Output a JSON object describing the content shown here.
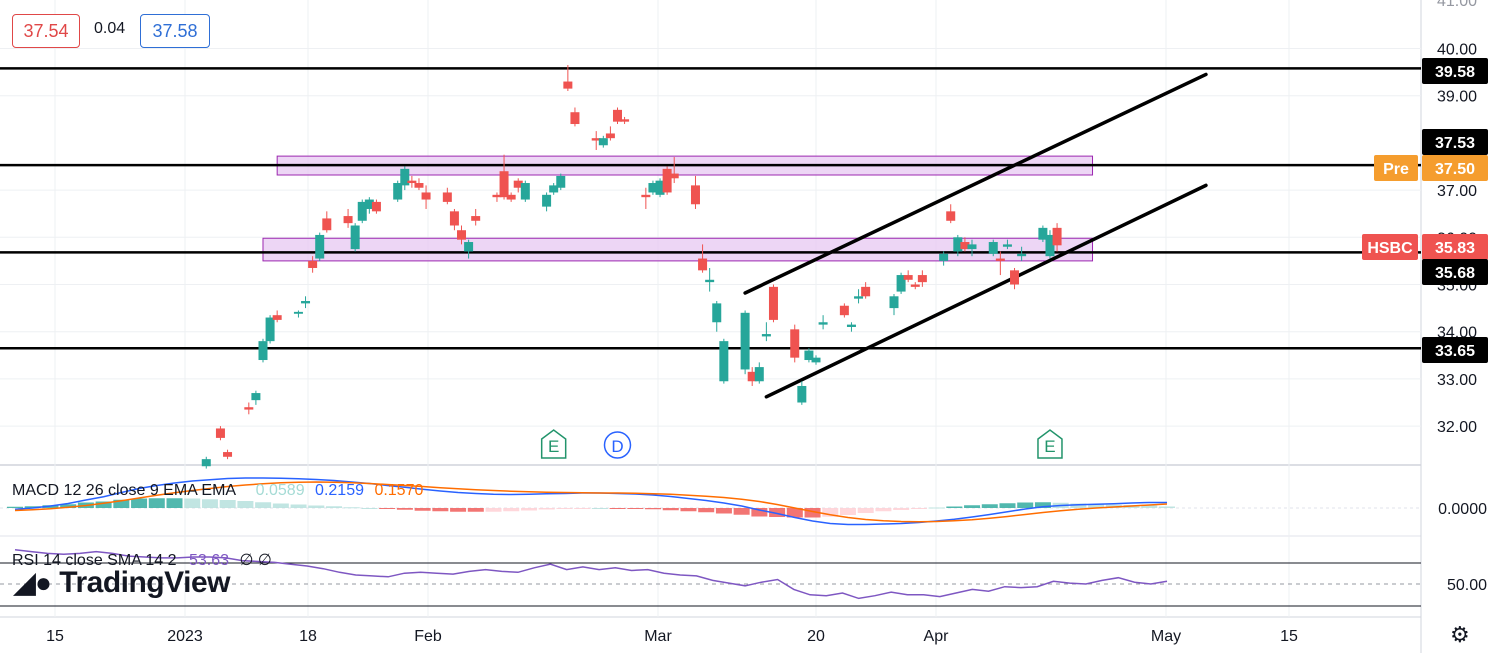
{
  "header": {
    "bid": "37.54",
    "spread": "0.04",
    "ask": "37.58"
  },
  "logo": {
    "text": "TradingView"
  },
  "icons": {
    "settings": "gear-icon"
  },
  "colors": {
    "up": "#26a69a",
    "down": "#ef5350",
    "zone_fill": "#e7c8f2",
    "zone_border": "#9c27b0",
    "macd_line": "#2962ff",
    "signal_line": "#ff6d00",
    "rsi_line": "#7e57c2",
    "pre_tag": "#f59d2e",
    "event_earnings": "#22946b",
    "event_dividend": "#2962ff"
  },
  "chart_data": {
    "type": "candlestick",
    "symbol": "HSBC",
    "price_axis": {
      "ticks": [
        "40.00",
        "39.00",
        "37.00",
        "36.00",
        "35.00",
        "34.00",
        "33.00",
        "32.00"
      ],
      "range": [
        31.3,
        41.1
      ]
    },
    "time_axis": [
      "15",
      "2023",
      "18",
      "Feb",
      "Mar",
      "20",
      "Apr",
      "May",
      "15"
    ],
    "price_tags": [
      {
        "value": "39.58",
        "style": "black"
      },
      {
        "value": "37.53",
        "style": "black"
      },
      {
        "value": "37.50",
        "label": "Pre",
        "style": "pre"
      },
      {
        "value": "35.83",
        "label": "HSBC",
        "style": "red"
      },
      {
        "value": "35.68",
        "style": "black"
      },
      {
        "value": "33.65",
        "style": "black"
      }
    ],
    "horizontal_levels": [
      39.58,
      37.53,
      35.68,
      33.65
    ],
    "zones": [
      {
        "from": "Jan 13",
        "to": "May 8",
        "low": 37.32,
        "high": 37.72
      },
      {
        "from": "Jan 11",
        "to": "May 8",
        "low": 35.5,
        "high": 35.98
      }
    ],
    "channel": {
      "upper": {
        "from": [
          "Mar 20",
          34.82
        ],
        "to": [
          "May 24",
          39.45
        ]
      },
      "lower": {
        "from": [
          "Mar 23",
          32.62
        ],
        "to": [
          "May 24",
          37.1
        ]
      }
    },
    "events": [
      {
        "label": "E",
        "date": "Feb 21",
        "kind": "earnings"
      },
      {
        "label": "D",
        "date": "Mar 2",
        "kind": "dividend"
      },
      {
        "label": "E",
        "date": "May 2",
        "kind": "earnings"
      }
    ],
    "candles": [
      {
        "date": "Jan 3",
        "o": 31.15,
        "h": 31.35,
        "l": 31.1,
        "c": 31.3
      },
      {
        "date": "Jan 5",
        "o": 31.95,
        "h": 32.0,
        "l": 31.7,
        "c": 31.75
      },
      {
        "date": "Jan 6",
        "o": 31.45,
        "h": 31.5,
        "l": 31.3,
        "c": 31.35
      },
      {
        "date": "Jan 9",
        "o": 32.4,
        "h": 32.5,
        "l": 32.25,
        "c": 32.35
      },
      {
        "date": "Jan 10",
        "o": 32.55,
        "h": 32.75,
        "l": 32.45,
        "c": 32.7
      },
      {
        "date": "Jan 11",
        "o": 33.4,
        "h": 33.85,
        "l": 33.35,
        "c": 33.8
      },
      {
        "date": "Jan 12",
        "o": 33.8,
        "h": 34.35,
        "l": 33.75,
        "c": 34.3
      },
      {
        "date": "Jan 13",
        "o": 34.35,
        "h": 34.45,
        "l": 34.2,
        "c": 34.25
      },
      {
        "date": "Jan 16",
        "o": 34.38,
        "h": 34.45,
        "l": 34.3,
        "c": 34.42
      },
      {
        "date": "Jan 17",
        "o": 34.6,
        "h": 34.75,
        "l": 34.5,
        "c": 34.65
      },
      {
        "date": "Jan 18",
        "o": 35.5,
        "h": 35.6,
        "l": 35.25,
        "c": 35.35
      },
      {
        "date": "Jan 19",
        "o": 35.55,
        "h": 36.1,
        "l": 35.5,
        "c": 36.05
      },
      {
        "date": "Jan 20",
        "o": 36.4,
        "h": 36.55,
        "l": 36.1,
        "c": 36.15
      },
      {
        "date": "Jan 23",
        "o": 36.45,
        "h": 36.6,
        "l": 36.2,
        "c": 36.3
      },
      {
        "date": "Jan 24",
        "o": 35.75,
        "h": 36.3,
        "l": 35.7,
        "c": 36.25
      },
      {
        "date": "Jan 25",
        "o": 36.35,
        "h": 36.8,
        "l": 36.3,
        "c": 36.75
      },
      {
        "date": "Jan 26",
        "o": 36.6,
        "h": 36.85,
        "l": 36.5,
        "c": 36.8
      },
      {
        "date": "Jan 27",
        "o": 36.75,
        "h": 36.8,
        "l": 36.5,
        "c": 36.55
      },
      {
        "date": "Jan 30",
        "o": 36.8,
        "h": 37.2,
        "l": 36.75,
        "c": 37.15
      },
      {
        "date": "Jan 31",
        "o": 37.1,
        "h": 37.5,
        "l": 37.0,
        "c": 37.45
      },
      {
        "date": "Feb 1",
        "o": 37.2,
        "h": 37.3,
        "l": 37.05,
        "c": 37.15
      },
      {
        "date": "Feb 2",
        "o": 37.15,
        "h": 37.25,
        "l": 37.0,
        "c": 37.05
      },
      {
        "date": "Feb 3",
        "o": 36.95,
        "h": 37.1,
        "l": 36.6,
        "c": 36.8
      },
      {
        "date": "Feb 6",
        "o": 36.95,
        "h": 37.05,
        "l": 36.7,
        "c": 36.75
      },
      {
        "date": "Feb 7",
        "o": 36.55,
        "h": 36.6,
        "l": 36.15,
        "c": 36.25
      },
      {
        "date": "Feb 8",
        "o": 36.15,
        "h": 36.25,
        "l": 35.85,
        "c": 35.95
      },
      {
        "date": "Feb 9",
        "o": 35.7,
        "h": 35.95,
        "l": 35.55,
        "c": 35.9
      },
      {
        "date": "Feb 10",
        "o": 36.45,
        "h": 36.6,
        "l": 36.25,
        "c": 36.35
      },
      {
        "date": "Feb 13",
        "o": 36.9,
        "h": 36.95,
        "l": 36.75,
        "c": 36.85
      },
      {
        "date": "Feb 14",
        "o": 37.4,
        "h": 37.75,
        "l": 36.8,
        "c": 36.85
      },
      {
        "date": "Feb 15",
        "o": 36.9,
        "h": 36.95,
        "l": 36.75,
        "c": 36.8
      },
      {
        "date": "Feb 16",
        "o": 37.2,
        "h": 37.25,
        "l": 36.95,
        "c": 37.05
      },
      {
        "date": "Feb 17",
        "o": 36.8,
        "h": 37.2,
        "l": 36.75,
        "c": 37.15
      },
      {
        "date": "Feb 20",
        "o": 36.65,
        "h": 36.95,
        "l": 36.55,
        "c": 36.9
      },
      {
        "date": "Feb 21",
        "o": 36.95,
        "h": 37.15,
        "l": 36.9,
        "c": 37.1
      },
      {
        "date": "Feb 22",
        "o": 37.05,
        "h": 37.35,
        "l": 37.0,
        "c": 37.3
      },
      {
        "date": "Feb 23",
        "o": 39.3,
        "h": 39.65,
        "l": 39.1,
        "c": 39.15
      },
      {
        "date": "Feb 24",
        "o": 38.65,
        "h": 38.75,
        "l": 38.35,
        "c": 38.4
      },
      {
        "date": "Feb 27",
        "o": 38.1,
        "h": 38.25,
        "l": 37.85,
        "c": 38.05
      },
      {
        "date": "Feb 28",
        "o": 37.95,
        "h": 38.15,
        "l": 37.9,
        "c": 38.1
      },
      {
        "date": "Mar 1",
        "o": 38.2,
        "h": 38.35,
        "l": 38.05,
        "c": 38.1
      },
      {
        "date": "Mar 2",
        "o": 38.7,
        "h": 38.75,
        "l": 38.4,
        "c": 38.45
      },
      {
        "date": "Mar 3",
        "o": 38.5,
        "h": 38.55,
        "l": 38.4,
        "c": 38.45
      },
      {
        "date": "Mar 6",
        "o": 36.9,
        "h": 37.05,
        "l": 36.6,
        "c": 36.85
      },
      {
        "date": "Mar 7",
        "o": 36.95,
        "h": 37.2,
        "l": 36.9,
        "c": 37.15
      },
      {
        "date": "Mar 8",
        "o": 36.9,
        "h": 37.25,
        "l": 36.85,
        "c": 37.2
      },
      {
        "date": "Mar 9",
        "o": 37.45,
        "h": 37.5,
        "l": 36.9,
        "c": 36.95
      },
      {
        "date": "Mar 10",
        "o": 37.35,
        "h": 37.7,
        "l": 37.15,
        "c": 37.25
      },
      {
        "date": "Mar 13",
        "o": 37.1,
        "h": 37.3,
        "l": 36.6,
        "c": 36.7
      },
      {
        "date": "Mar 14",
        "o": 35.55,
        "h": 35.85,
        "l": 35.25,
        "c": 35.3
      },
      {
        "date": "Mar 15",
        "o": 35.05,
        "h": 35.35,
        "l": 34.85,
        "c": 35.1
      },
      {
        "date": "Mar 16",
        "o": 34.2,
        "h": 34.65,
        "l": 34.0,
        "c": 34.6
      },
      {
        "date": "Mar 17",
        "o": 32.95,
        "h": 33.85,
        "l": 32.9,
        "c": 33.8
      },
      {
        "date": "Mar 20",
        "o": 33.2,
        "h": 34.45,
        "l": 33.1,
        "c": 34.4
      },
      {
        "date": "Mar 21",
        "o": 33.15,
        "h": 33.25,
        "l": 32.85,
        "c": 32.95
      },
      {
        "date": "Mar 22",
        "o": 32.95,
        "h": 33.35,
        "l": 32.9,
        "c": 33.25
      },
      {
        "date": "Mar 23",
        "o": 33.9,
        "h": 34.2,
        "l": 33.8,
        "c": 33.95
      },
      {
        "date": "Mar 24",
        "o": 34.95,
        "h": 35.0,
        "l": 34.2,
        "c": 34.25
      },
      {
        "date": "Mar 27",
        "o": 34.05,
        "h": 34.15,
        "l": 33.35,
        "c": 33.45
      },
      {
        "date": "Mar 28",
        "o": 32.5,
        "h": 32.95,
        "l": 32.45,
        "c": 32.85
      },
      {
        "date": "Mar 29",
        "o": 33.4,
        "h": 33.65,
        "l": 33.35,
        "c": 33.6
      },
      {
        "date": "Mar 30",
        "o": 33.35,
        "h": 33.5,
        "l": 33.3,
        "c": 33.45
      },
      {
        "date": "Mar 31",
        "o": 34.15,
        "h": 34.35,
        "l": 34.05,
        "c": 34.2
      },
      {
        "date": "Apr 3",
        "o": 34.55,
        "h": 34.6,
        "l": 34.3,
        "c": 34.35
      },
      {
        "date": "Apr 4",
        "o": 34.1,
        "h": 34.2,
        "l": 34.0,
        "c": 34.15
      },
      {
        "date": "Apr 5",
        "o": 34.7,
        "h": 34.9,
        "l": 34.6,
        "c": 34.75
      },
      {
        "date": "Apr 6",
        "o": 34.95,
        "h": 35.05,
        "l": 34.7,
        "c": 34.75
      },
      {
        "date": "Apr 10",
        "o": 34.5,
        "h": 34.8,
        "l": 34.35,
        "c": 34.75
      },
      {
        "date": "Apr 11",
        "o": 34.85,
        "h": 35.25,
        "l": 34.8,
        "c": 35.2
      },
      {
        "date": "Apr 12",
        "o": 35.2,
        "h": 35.3,
        "l": 35.05,
        "c": 35.1
      },
      {
        "date": "Apr 13",
        "o": 35.0,
        "h": 35.05,
        "l": 34.9,
        "c": 34.95
      },
      {
        "date": "Apr 14",
        "o": 35.2,
        "h": 35.3,
        "l": 34.95,
        "c": 35.05
      },
      {
        "date": "Apr 17",
        "o": 35.5,
        "h": 35.7,
        "l": 35.4,
        "c": 35.65
      },
      {
        "date": "Apr 18",
        "o": 36.55,
        "h": 36.7,
        "l": 36.3,
        "c": 36.35
      },
      {
        "date": "Apr 19",
        "o": 35.7,
        "h": 36.05,
        "l": 35.6,
        "c": 36.0
      },
      {
        "date": "Apr 20",
        "o": 35.9,
        "h": 36.0,
        "l": 35.7,
        "c": 35.75
      },
      {
        "date": "Apr 21",
        "o": 35.75,
        "h": 35.95,
        "l": 35.6,
        "c": 35.85
      },
      {
        "date": "Apr 24",
        "o": 35.65,
        "h": 35.95,
        "l": 35.6,
        "c": 35.9
      },
      {
        "date": "Apr 25",
        "o": 35.55,
        "h": 35.7,
        "l": 35.2,
        "c": 35.5
      },
      {
        "date": "Apr 26",
        "o": 35.8,
        "h": 35.95,
        "l": 35.75,
        "c": 35.85
      },
      {
        "date": "Apr 27",
        "o": 35.3,
        "h": 35.35,
        "l": 34.9,
        "c": 35.0
      },
      {
        "date": "Apr 28",
        "o": 35.6,
        "h": 35.8,
        "l": 35.5,
        "c": 35.65
      },
      {
        "date": "May 1",
        "o": 35.95,
        "h": 36.25,
        "l": 35.9,
        "c": 36.2
      },
      {
        "date": "May 2",
        "o": 35.6,
        "h": 36.15,
        "l": 35.55,
        "c": 36.05
      },
      {
        "date": "May 3",
        "o": 36.2,
        "h": 36.3,
        "l": 35.7,
        "c": 35.83
      }
    ],
    "macd": {
      "label": "MACD 12 26 close 9 EMA EMA",
      "values": {
        "histogram": "0.0589",
        "macd": "0.2159",
        "signal": "0.1570"
      },
      "axis_tick": "0.0000",
      "macd_line": [
        -0.05,
        0.0,
        0.08,
        0.18,
        0.32,
        0.45,
        0.62,
        0.78,
        0.9,
        1.0,
        1.08,
        1.13,
        1.18,
        1.2,
        1.2,
        1.19,
        1.17,
        1.14,
        1.1,
        1.04,
        0.98,
        0.9,
        0.83,
        0.75,
        0.68,
        0.62,
        0.58,
        0.55,
        0.54,
        0.55,
        0.57,
        0.58,
        0.6,
        0.6,
        0.58,
        0.56,
        0.52,
        0.46,
        0.38,
        0.3,
        0.2,
        0.08,
        -0.08,
        -0.22,
        -0.38,
        -0.52,
        -0.62,
        -0.66,
        -0.66,
        -0.64,
        -0.62,
        -0.58,
        -0.52,
        -0.45,
        -0.36,
        -0.26,
        -0.15,
        -0.04,
        0.05,
        0.1,
        0.13,
        0.15,
        0.17,
        0.2,
        0.22,
        0.22
      ],
      "signal_line": [
        -0.1,
        -0.07,
        -0.03,
        0.03,
        0.1,
        0.19,
        0.29,
        0.4,
        0.51,
        0.61,
        0.7,
        0.78,
        0.86,
        0.92,
        0.97,
        1.01,
        1.03,
        1.04,
        1.03,
        1.01,
        0.98,
        0.94,
        0.9,
        0.86,
        0.81,
        0.77,
        0.73,
        0.7,
        0.67,
        0.65,
        0.63,
        0.62,
        0.61,
        0.6,
        0.6,
        0.59,
        0.57,
        0.55,
        0.51,
        0.47,
        0.42,
        0.35,
        0.26,
        0.14,
        0.0,
        -0.14,
        -0.27,
        -0.38,
        -0.46,
        -0.51,
        -0.54,
        -0.55,
        -0.54,
        -0.51,
        -0.47,
        -0.41,
        -0.34,
        -0.26,
        -0.18,
        -0.11,
        -0.05,
        0.0,
        0.04,
        0.08,
        0.12,
        0.16
      ]
    },
    "rsi": {
      "label": "RSI 14 close SMA 14 2",
      "value": "53.63",
      "extra": "∅ ∅",
      "axis_tick": "50.00",
      "levels": [
        70,
        50,
        30
      ],
      "line": [
        88,
        86,
        84,
        83,
        84,
        86,
        84,
        81,
        80,
        79,
        79,
        80,
        80,
        79,
        76,
        75,
        74,
        72,
        70,
        67,
        63,
        60,
        59,
        58,
        62,
        63,
        62,
        61,
        64,
        66,
        64,
        63,
        68,
        72,
        66,
        69,
        66,
        68,
        65,
        66,
        62,
        60,
        59,
        54,
        51,
        48,
        52,
        55,
        44,
        38,
        37,
        40,
        34,
        37,
        41,
        38,
        38,
        36,
        40,
        44,
        42,
        47,
        46,
        47,
        53,
        51,
        50,
        54,
        57,
        52,
        50,
        53
      ]
    }
  }
}
